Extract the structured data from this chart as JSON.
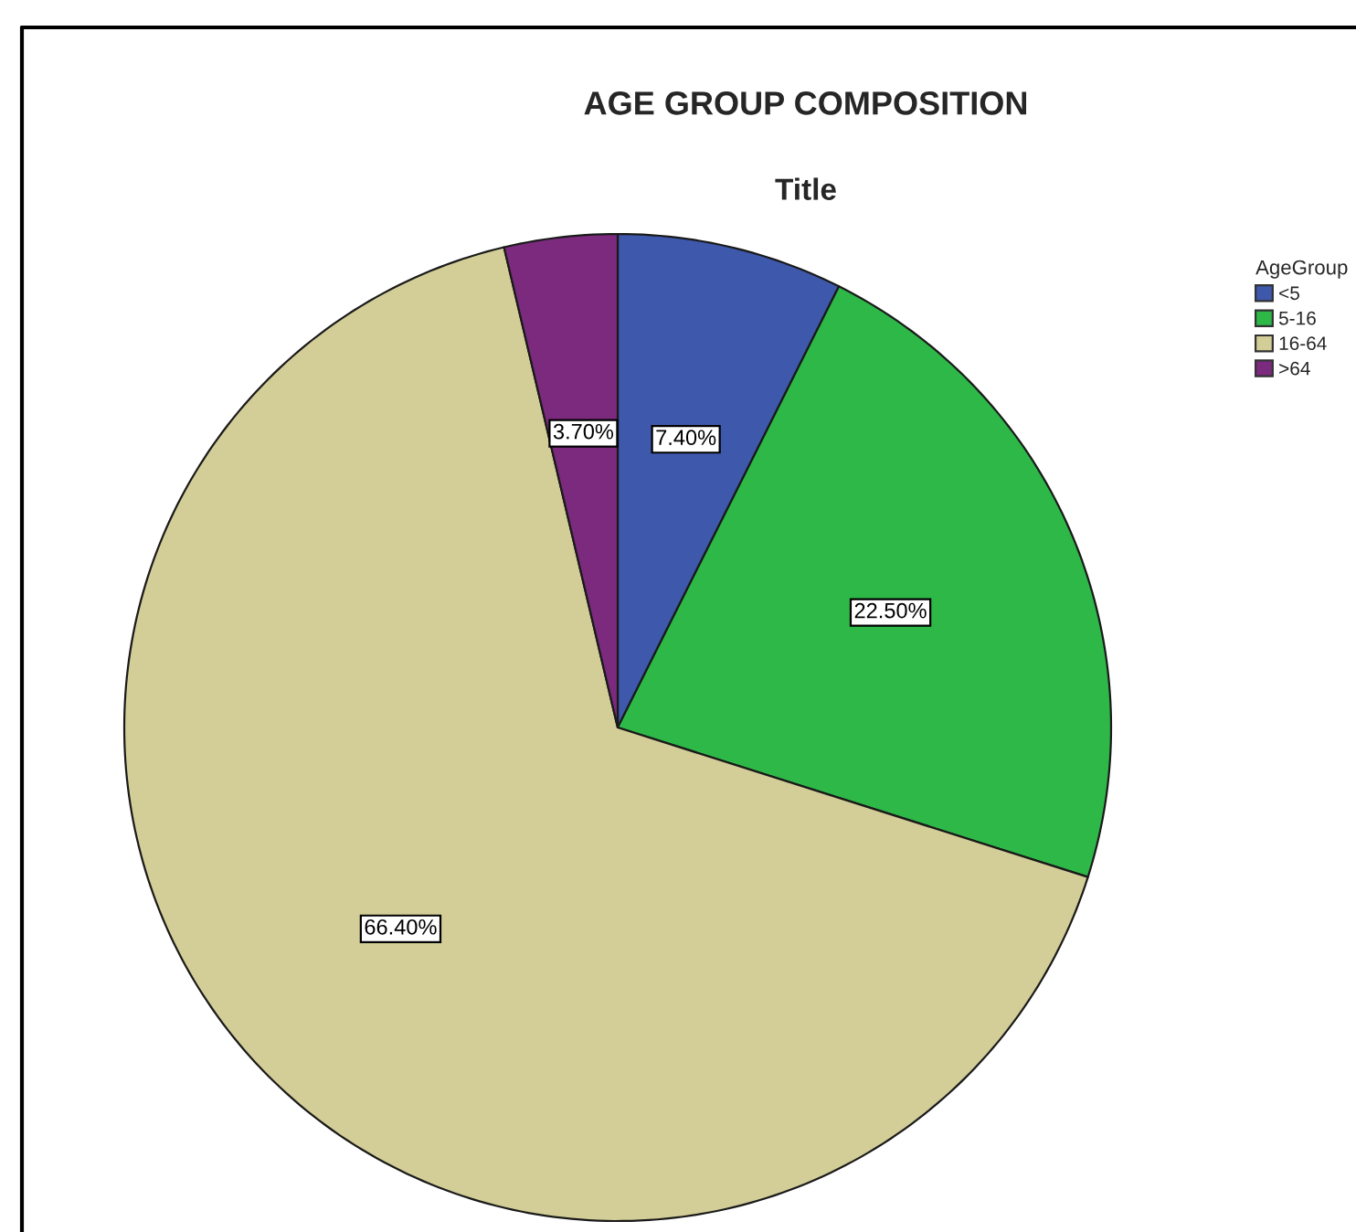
{
  "chart_data": {
    "type": "pie",
    "title": "AGE GROUP COMPOSITION",
    "subtitle": "Title",
    "legend_title": "AgeGroup",
    "categories": [
      "<5",
      "5-16",
      "16-64",
      ">64"
    ],
    "values": [
      7.4,
      22.5,
      66.4,
      3.7
    ],
    "colors": [
      "#3e58ac",
      "#2eb848",
      "#d3ce97",
      "#7b2a7e"
    ],
    "value_labels": [
      "7.40%",
      "22.50%",
      "66.40%",
      "3.70%"
    ],
    "legend": "top right"
  }
}
